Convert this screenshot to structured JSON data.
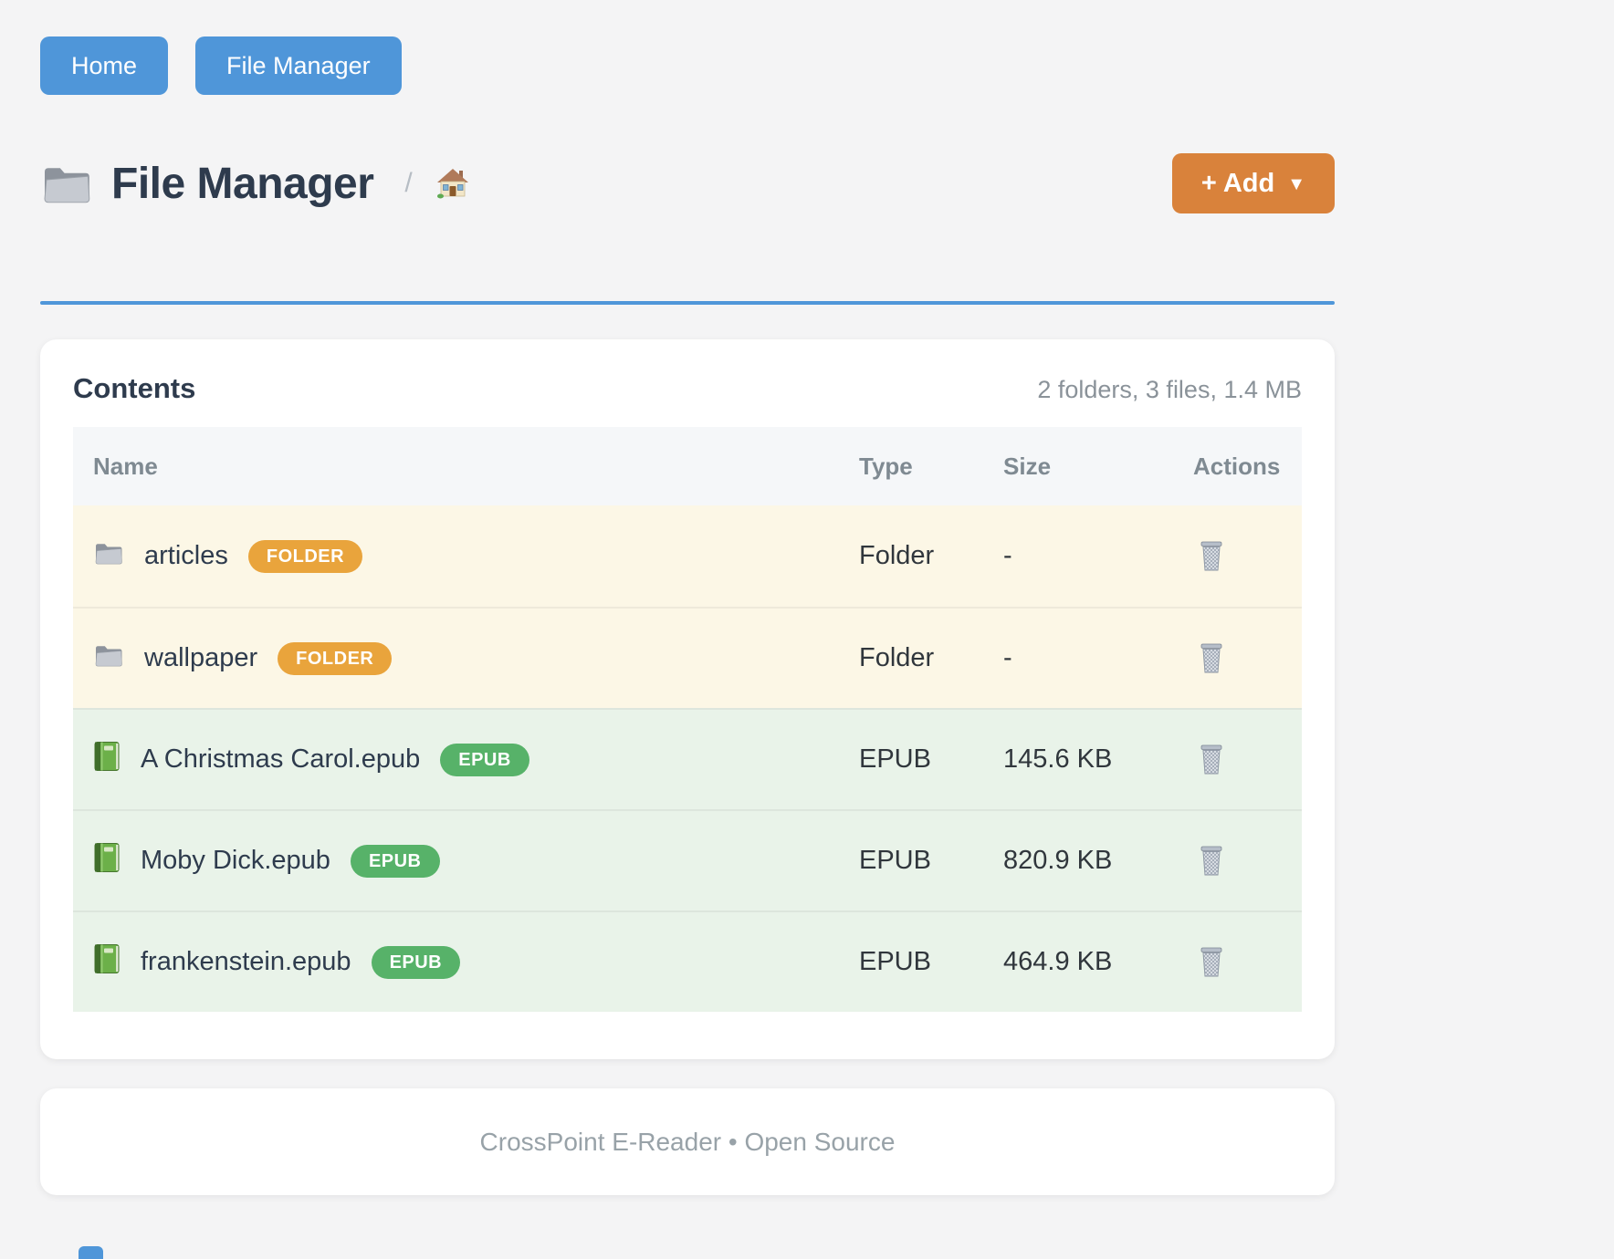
{
  "colors": {
    "nav_blue": "#4f96d9",
    "accent_orange": "#d9823b",
    "badge_folder": "#e9a43c",
    "badge_epub": "#57b269",
    "folder_row_bg": "#fcf7e6",
    "epub_row_bg": "#e9f3e9",
    "divider_blue": "#4f96d9"
  },
  "nav": {
    "buttons": [
      {
        "label": "Home"
      },
      {
        "label": "File Manager"
      }
    ]
  },
  "header": {
    "title": "File Manager",
    "title_icon": "folder-icon",
    "breadcrumb_separator": "/",
    "breadcrumb_icon": "house-icon",
    "add_button": {
      "label": "+ Add",
      "caret": "▼"
    }
  },
  "contents": {
    "title": "Contents",
    "summary": "2 folders, 3 files, 1.4 MB",
    "columns": [
      "Name",
      "Type",
      "Size",
      "Actions"
    ],
    "rows": [
      {
        "icon": "folder-icon",
        "name": "articles",
        "badge": "FOLDER",
        "type": "Folder",
        "size": "-",
        "kind": "folder"
      },
      {
        "icon": "folder-icon",
        "name": "wallpaper",
        "badge": "FOLDER",
        "type": "Folder",
        "size": "-",
        "kind": "folder"
      },
      {
        "icon": "book-icon",
        "name": "A Christmas Carol.epub",
        "badge": "EPUB",
        "type": "EPUB",
        "size": "145.6 KB",
        "kind": "epub"
      },
      {
        "icon": "book-icon",
        "name": "Moby Dick.epub",
        "badge": "EPUB",
        "type": "EPUB",
        "size": "820.9 KB",
        "kind": "epub"
      },
      {
        "icon": "book-icon",
        "name": "frankenstein.epub",
        "badge": "EPUB",
        "type": "EPUB",
        "size": "464.9 KB",
        "kind": "epub"
      }
    ],
    "row_action_icon": "trash-icon"
  },
  "footer": {
    "text": "CrossPoint E-Reader • Open Source"
  }
}
